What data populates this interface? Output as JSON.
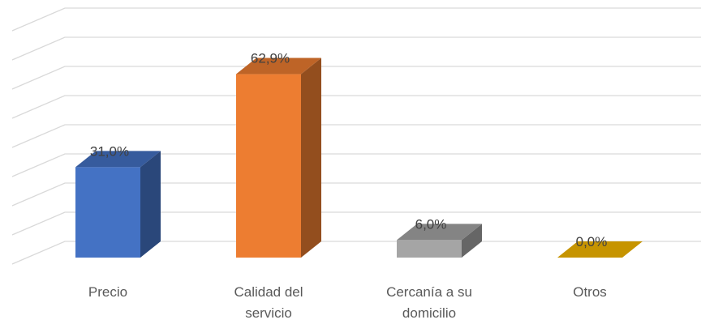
{
  "chart_data": {
    "type": "bar3d",
    "categories": [
      "Precio",
      "Calidad del servicio",
      "Cercanía a su domicilio",
      "Otros"
    ],
    "values": [
      31.0,
      62.9,
      6.0,
      0.0
    ],
    "value_labels": [
      "31,0%",
      "62,9%",
      "6,0%",
      "0,0%"
    ],
    "colors": [
      "#4472c4",
      "#ed7d31",
      "#a5a5a5",
      "#c69400"
    ],
    "ylim": [
      0,
      80
    ],
    "yticks": [
      0,
      10,
      20,
      30,
      40,
      50,
      60,
      70,
      80
    ],
    "grid": true
  }
}
